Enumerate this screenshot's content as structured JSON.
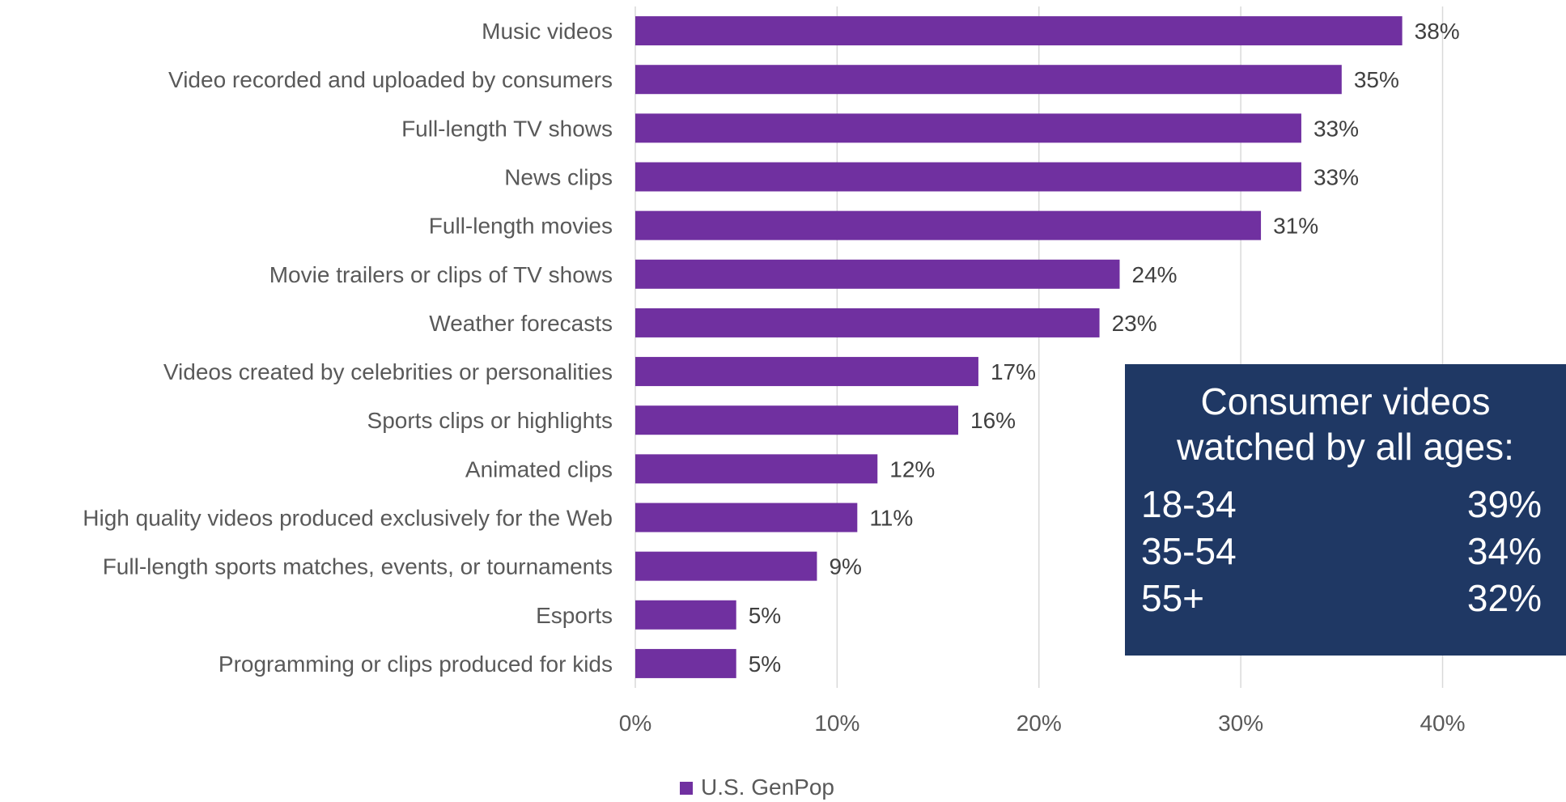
{
  "chart_data": {
    "type": "bar",
    "orientation": "horizontal",
    "categories": [
      "Music videos",
      "Video recorded and uploaded by consumers",
      "Full-length TV shows",
      "News clips",
      "Full-length movies",
      "Movie trailers or clips of TV shows",
      "Weather forecasts",
      "Videos created by celebrities or personalities",
      "Sports clips or highlights",
      "Animated clips",
      "High quality videos produced exclusively for the Web",
      "Full-length sports matches, events, or tournaments",
      "Esports",
      "Programming or clips produced for kids"
    ],
    "series": [
      {
        "name": "U.S. GenPop",
        "values": [
          38,
          35,
          33,
          33,
          31,
          24,
          23,
          17,
          16,
          12,
          11,
          9,
          5,
          5
        ],
        "labels": [
          "38%",
          "35%",
          "33%",
          "33%",
          "31%",
          "24%",
          "23%",
          "17%",
          "16%",
          "12%",
          "11%",
          "9%",
          "5%",
          "5%"
        ],
        "color": "#7030a0"
      }
    ],
    "xlim": [
      0,
      45
    ],
    "xticks": [
      0,
      10,
      20,
      30,
      40
    ],
    "xtick_labels": [
      "0%",
      "10%",
      "20%",
      "30%",
      "40%"
    ],
    "grid": "vertical",
    "legend_position": "bottom-center",
    "title": "",
    "xlabel": "",
    "ylabel": ""
  },
  "info_box": {
    "title_line1": "Consumer videos",
    "title_line2": "watched by all ages:",
    "rows": [
      {
        "label": "18-34",
        "value": "39%"
      },
      {
        "label": "35-54",
        "value": "34%"
      },
      {
        "label": "55+",
        "value": "32%"
      }
    ],
    "background": "#1f3864",
    "text_color": "#ffffff"
  },
  "colors": {
    "bar": "#7030a0",
    "category_text": "#595959",
    "value_text": "#404040",
    "gridline": "#d9d9d9"
  }
}
